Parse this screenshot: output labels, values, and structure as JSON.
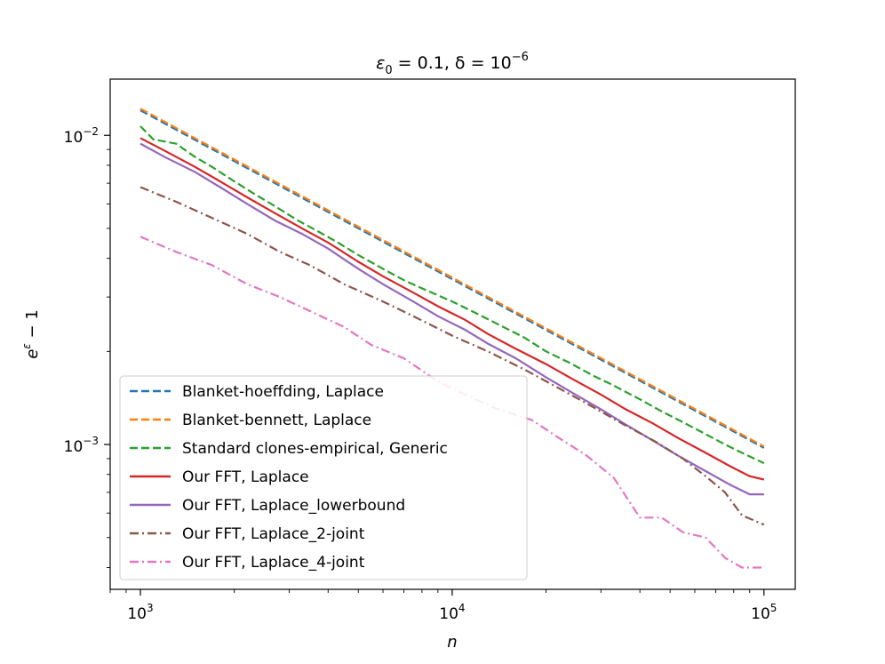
{
  "chart_data": {
    "type": "line",
    "title": {
      "pre": "ε",
      "sub0": "0",
      "mid": " = 0.1, δ = 10",
      "sup": "−6"
    },
    "xlabel": "n",
    "ylabel": {
      "base": "e",
      "sup": "ε",
      "rest": " − 1"
    },
    "x_scale": "log",
    "y_scale": "log",
    "xlim": [
      800,
      126000
    ],
    "ylim": [
      0.00034,
      0.0152
    ],
    "x_major_ticks": [
      {
        "value": 1000,
        "base": "10",
        "exp": "3"
      },
      {
        "value": 10000,
        "base": "10",
        "exp": "4"
      },
      {
        "value": 100000,
        "base": "10",
        "exp": "5"
      }
    ],
    "y_major_ticks": [
      {
        "value": 0.01,
        "base": "10",
        "exp": "−2"
      },
      {
        "value": 0.001,
        "base": "10",
        "exp": "−3"
      }
    ],
    "legend_position": "lower-left",
    "series": [
      {
        "name": "Blanket-hoeffding, Laplace",
        "color": "#1f77b4",
        "style": "dashed",
        "x": [
          1000,
          100000
        ],
        "y": [
          0.01205,
          0.000975
        ]
      },
      {
        "name": "Blanket-bennett, Laplace",
        "color": "#ff7f0e",
        "style": "dashed",
        "x": [
          1000,
          100000
        ],
        "y": [
          0.0122,
          0.000985
        ]
      },
      {
        "name": "Standard clones-empirical, Generic",
        "color": "#2ca02c",
        "style": "dashed",
        "x": [
          1000,
          1100,
          1300,
          1500,
          1700,
          2000,
          2300,
          2700,
          3200,
          3700,
          4300,
          5000,
          6000,
          7000,
          8000,
          10000,
          12000,
          14000,
          17000,
          20000,
          24000,
          28000,
          33000,
          40000,
          47000,
          55000,
          65000,
          75000,
          85000,
          100000
        ],
        "y": [
          0.0107,
          0.0097,
          0.0094,
          0.0085,
          0.0079,
          0.0071,
          0.0065,
          0.0059,
          0.0053,
          0.0049,
          0.0045,
          0.0041,
          0.0037,
          0.0034,
          0.0032,
          0.0029,
          0.00265,
          0.00245,
          0.00222,
          0.002,
          0.00183,
          0.00168,
          0.00155,
          0.0014,
          0.00128,
          0.00118,
          0.00108,
          0.001,
          0.00094,
          0.00087
        ]
      },
      {
        "name": "Our FFT, Laplace",
        "color": "#d62728",
        "style": "solid",
        "x": [
          1000,
          1200,
          1500,
          1800,
          2200,
          2700,
          3300,
          4000,
          5000,
          6000,
          7500,
          9000,
          11000,
          13000,
          16000,
          20000,
          24000,
          30000,
          36000,
          44000,
          53000,
          65000,
          78000,
          90000,
          100000
        ],
        "y": [
          0.0098,
          0.0089,
          0.0079,
          0.0071,
          0.0063,
          0.0056,
          0.005,
          0.0045,
          0.0039,
          0.0035,
          0.0031,
          0.0028,
          0.00253,
          0.00228,
          0.00204,
          0.00182,
          0.00164,
          0.00145,
          0.0013,
          0.00117,
          0.00105,
          0.00094,
          0.00085,
          0.00079,
          0.00077
        ]
      },
      {
        "name": "Our FFT, Laplace_lowerbound",
        "color": "#9467bd",
        "style": "solid",
        "x": [
          1000,
          1200,
          1500,
          1800,
          2200,
          2700,
          3300,
          4000,
          5000,
          6000,
          7500,
          9000,
          11000,
          13000,
          16000,
          20000,
          24000,
          30000,
          36000,
          44000,
          53000,
          65000,
          78000,
          90000,
          100000
        ],
        "y": [
          0.0094,
          0.0085,
          0.0076,
          0.0068,
          0.006,
          0.0053,
          0.0048,
          0.0043,
          0.0037,
          0.0033,
          0.0029,
          0.0026,
          0.00235,
          0.00212,
          0.0019,
          0.00165,
          0.00148,
          0.0013,
          0.00116,
          0.00103,
          0.00092,
          0.00082,
          0.00074,
          0.00069,
          0.00069
        ]
      },
      {
        "name": "Our FFT, Laplace_2-joint",
        "color": "#8c564b",
        "style": "dashdot",
        "x": [
          1000,
          1300,
          1700,
          2200,
          2800,
          3500,
          4500,
          6000,
          7500,
          10000,
          13000,
          17000,
          22000,
          28000,
          35000,
          45000,
          55000,
          65000,
          75000,
          85000,
          100000
        ],
        "y": [
          0.0068,
          0.0061,
          0.0054,
          0.0048,
          0.0042,
          0.0038,
          0.0033,
          0.0029,
          0.0026,
          0.00225,
          0.002,
          0.00175,
          0.00152,
          0.00133,
          0.00117,
          0.00102,
          0.0009,
          0.00079,
          0.0007,
          0.00059,
          0.00055
        ]
      },
      {
        "name": "Our FFT, Laplace_4-joint",
        "color": "#e377c2",
        "style": "dashdot",
        "x": [
          1000,
          1300,
          1700,
          2200,
          2800,
          3500,
          4500,
          5500,
          7000,
          9000,
          11000,
          14000,
          18000,
          22000,
          27000,
          33000,
          40000,
          47000,
          55000,
          65000,
          75000,
          85000,
          100000
        ],
        "y": [
          0.0047,
          0.0042,
          0.0038,
          0.0033,
          0.003,
          0.0027,
          0.0024,
          0.0021,
          0.0019,
          0.0016,
          0.00145,
          0.0013,
          0.0012,
          0.00105,
          0.00092,
          0.00078,
          0.00058,
          0.00058,
          0.00052,
          0.0005,
          0.00043,
          0.0004,
          0.0004
        ]
      }
    ]
  }
}
